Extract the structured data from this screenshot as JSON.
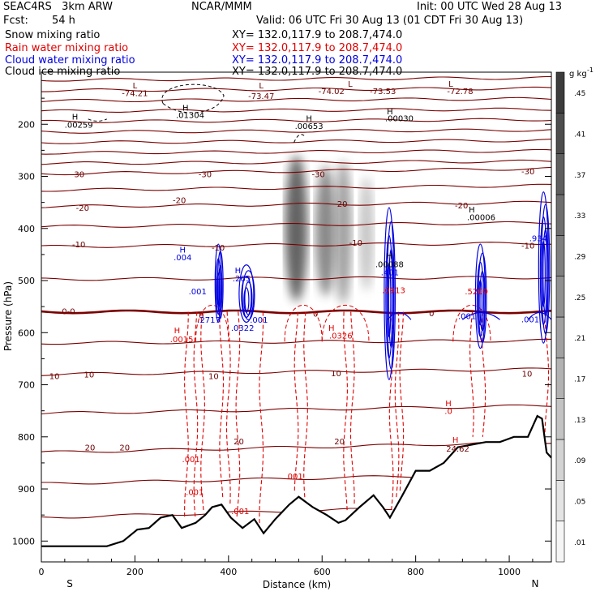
{
  "header": {
    "project": "SEAC4RS   3km ARW",
    "org": "NCAR/MMM",
    "init": "Init: 00 UTC Wed 28 Aug 13",
    "fcst_label": "Fcst:",
    "fcst_value": "54 h",
    "valid": "Valid: 06 UTC Fri 30 Aug 13 (01 CDT Fri 30 Aug 13)"
  },
  "fields": [
    {
      "name": "Snow mixing ratio",
      "xy": "XY= 132.0,117.9 to 208.7,474.0",
      "color": "#000000"
    },
    {
      "name": "Rain water mixing ratio",
      "xy": "XY= 132.0,117.9 to 208.7,474.0",
      "color": "#e00000"
    },
    {
      "name": "Cloud water mixing ratio",
      "xy": "XY= 132.0,117.9 to 208.7,474.0",
      "color": "#0000e0"
    },
    {
      "name": "Cloud ice mixing ratio",
      "xy": "XY= 132.0,117.9 to 208.7,474.0",
      "color": "#000000"
    }
  ],
  "chart_data": {
    "type": "cross-section",
    "xlabel": "Distance (km)",
    "ylabel": "Pressure (hPa)",
    "xlim": [
      0,
      1090
    ],
    "ylim": [
      1040,
      100
    ],
    "x_ticks": [
      0,
      200,
      400,
      600,
      800,
      1000
    ],
    "y_ticks": [
      200,
      300,
      400,
      500,
      600,
      700,
      800,
      900,
      1000
    ],
    "x_endpoint_left": "S",
    "x_endpoint_right": "N",
    "colorbar": {
      "unit": "g kg",
      "unit_exp": "-1",
      "levels": [
        ".01",
        ".05",
        ".09",
        ".13",
        ".17",
        ".21",
        ".25",
        ".29",
        ".33",
        ".37",
        ".41",
        ".45"
      ],
      "range": [
        0,
        0.49
      ]
    },
    "terrain_pressure": [
      [
        0,
        1010
      ],
      [
        40,
        1010
      ],
      [
        90,
        1010
      ],
      [
        140,
        1010
      ],
      [
        175,
        1000
      ],
      [
        205,
        978
      ],
      [
        230,
        975
      ],
      [
        255,
        955
      ],
      [
        280,
        950
      ],
      [
        300,
        975
      ],
      [
        330,
        965
      ],
      [
        350,
        950
      ],
      [
        365,
        935
      ],
      [
        385,
        930
      ],
      [
        405,
        955
      ],
      [
        430,
        975
      ],
      [
        455,
        958
      ],
      [
        475,
        985
      ],
      [
        500,
        958
      ],
      [
        530,
        930
      ],
      [
        550,
        915
      ],
      [
        580,
        935
      ],
      [
        610,
        950
      ],
      [
        635,
        965
      ],
      [
        650,
        960
      ],
      [
        680,
        935
      ],
      [
        710,
        912
      ],
      [
        730,
        935
      ],
      [
        745,
        955
      ],
      [
        770,
        915
      ],
      [
        800,
        865
      ],
      [
        830,
        865
      ],
      [
        860,
        850
      ],
      [
        890,
        820
      ],
      [
        920,
        815
      ],
      [
        950,
        810
      ],
      [
        980,
        810
      ],
      [
        1010,
        800
      ],
      [
        1040,
        800
      ],
      [
        1060,
        760
      ],
      [
        1070,
        765
      ],
      [
        1080,
        830
      ],
      [
        1090,
        840
      ]
    ],
    "isotherms": [
      {
        "label": "-30",
        "p_left": 295,
        "p_right": 285
      },
      {
        "label": "-20",
        "p_left": 358,
        "p_right": 350
      },
      {
        "label": "-10",
        "p_left": 435,
        "p_right": 428
      },
      {
        "label": "0",
        "p_left": 560,
        "p_right": 560
      },
      {
        "label": "10",
        "p_left": 680,
        "p_right": 670
      },
      {
        "label": "20",
        "p_left": 830,
        "p_right": 810
      }
    ],
    "temp_labels": [
      {
        "text": "-30",
        "x": 78,
        "p": 295
      },
      {
        "text": "-30",
        "x": 350,
        "p": 295
      },
      {
        "text": "-30",
        "x": 592,
        "p": 295
      },
      {
        "text": "-30",
        "x": 1040,
        "p": 290
      },
      {
        "text": "-20",
        "x": 88,
        "p": 360
      },
      {
        "text": "-20",
        "x": 295,
        "p": 345
      },
      {
        "text": "-20",
        "x": 640,
        "p": 352
      },
      {
        "text": "-20",
        "x": 898,
        "p": 355
      },
      {
        "text": "-10",
        "x": 80,
        "p": 430
      },
      {
        "text": "-10",
        "x": 378,
        "p": 436
      },
      {
        "text": "-10",
        "x": 672,
        "p": 427
      },
      {
        "text": "-10",
        "x": 1040,
        "p": 432
      },
      {
        "text": "0-0",
        "x": 58,
        "p": 558
      },
      {
        "text": "0",
        "x": 342,
        "p": 566
      },
      {
        "text": "0",
        "x": 586,
        "p": 563
      },
      {
        "text": "0",
        "x": 834,
        "p": 562
      },
      {
        "text": "10",
        "x": 28,
        "p": 683
      },
      {
        "text": "10",
        "x": 102,
        "p": 680
      },
      {
        "text": "10",
        "x": 368,
        "p": 683
      },
      {
        "text": "10",
        "x": 630,
        "p": 677
      },
      {
        "text": "10",
        "x": 1038,
        "p": 678
      },
      {
        "text": "20",
        "x": 104,
        "p": 820
      },
      {
        "text": "20",
        "x": 178,
        "p": 820
      },
      {
        "text": "20",
        "x": 422,
        "p": 808
      },
      {
        "text": "20",
        "x": 637,
        "p": 808
      }
    ],
    "extrema_labels": [
      {
        "text": "L",
        "x": 200,
        "p": 125,
        "color": "#6b0000"
      },
      {
        "text": "-74.21",
        "x": 200,
        "p": 140,
        "color": "#6b0000"
      },
      {
        "text": "L",
        "x": 470,
        "p": 125,
        "color": "#6b0000"
      },
      {
        "text": "-73.47",
        "x": 470,
        "p": 145,
        "color": "#6b0000"
      },
      {
        "text": "L",
        "x": 660,
        "p": 122,
        "color": "#6b0000"
      },
      {
        "text": "-74.02",
        "x": 620,
        "p": 136,
        "color": "#6b0000"
      },
      {
        "text": "-73.53",
        "x": 730,
        "p": 136,
        "color": "#6b0000"
      },
      {
        "text": "L",
        "x": 875,
        "p": 122,
        "color": "#6b0000"
      },
      {
        "text": "-72.78",
        "x": 895,
        "p": 136,
        "color": "#6b0000"
      },
      {
        "text": "H",
        "x": 72,
        "p": 185,
        "color": "#000000"
      },
      {
        "text": ".00259",
        "x": 80,
        "p": 200,
        "color": "#000000"
      },
      {
        "text": "H",
        "x": 308,
        "p": 168,
        "color": "#000000"
      },
      {
        "text": ".01304",
        "x": 318,
        "p": 182,
        "color": "#000000"
      },
      {
        "text": "H",
        "x": 572,
        "p": 188,
        "color": "#000000"
      },
      {
        "text": ".00653",
        "x": 572,
        "p": 203,
        "color": "#000000"
      },
      {
        "text": "H",
        "x": 745,
        "p": 175,
        "color": "#000000"
      },
      {
        "text": ".00030",
        "x": 765,
        "p": 188,
        "color": "#000000"
      },
      {
        "text": "H",
        "x": 920,
        "p": 363,
        "color": "#000000"
      },
      {
        "text": ".00006",
        "x": 940,
        "p": 378,
        "color": "#000000"
      },
      {
        "text": "H",
        "x": 744,
        "p": 452,
        "color": "#000000"
      },
      {
        "text": ".00088",
        "x": 744,
        "p": 468,
        "color": "#000000"
      },
      {
        "text": "H",
        "x": 290,
        "p": 595,
        "color": "#e00000"
      },
      {
        "text": ".0015",
        "x": 300,
        "p": 612,
        "color": "#e00000"
      },
      {
        "text": "H",
        "x": 620,
        "p": 590,
        "color": "#e00000"
      },
      {
        "text": ".0326",
        "x": 640,
        "p": 605,
        "color": "#e00000"
      },
      {
        "text": "H",
        "x": 870,
        "p": 735,
        "color": "#e00000"
      },
      {
        "text": ".0",
        "x": 870,
        "p": 750,
        "color": "#e00000"
      },
      {
        "text": "H",
        "x": 885,
        "p": 805,
        "color": "#e00000"
      },
      {
        "text": "24.62",
        "x": 890,
        "p": 822,
        "color": "#6b0000"
      },
      {
        "text": ".001",
        "x": 320,
        "p": 842,
        "color": "#e00000"
      },
      {
        "text": ".001",
        "x": 328,
        "p": 905,
        "color": "#e00000"
      },
      {
        "text": ".001",
        "x": 425,
        "p": 942,
        "color": "#e00000"
      },
      {
        "text": ".001",
        "x": 540,
        "p": 875,
        "color": "#e00000"
      },
      {
        "text": ".0913",
        "x": 753,
        "p": 518,
        "color": "#e00000"
      },
      {
        "text": ".5209",
        "x": 930,
        "p": 520,
        "color": "#e00000"
      },
      {
        "text": "H",
        "x": 302,
        "p": 440,
        "color": "#0000e0"
      },
      {
        "text": ".004",
        "x": 302,
        "p": 455,
        "color": "#0000e0"
      },
      {
        "text": ".001",
        "x": 334,
        "p": 520,
        "color": "#0000e0"
      },
      {
        "text": "H",
        "x": 420,
        "p": 480,
        "color": "#0000e0"
      },
      {
        "text": ".265",
        "x": 428,
        "p": 495,
        "color": "#0000e0"
      },
      {
        "text": ".2717",
        "x": 358,
        "p": 575,
        "color": "#0000e0"
      },
      {
        "text": ".0322",
        "x": 430,
        "p": 590,
        "color": "#0000e0"
      },
      {
        "text": ".001",
        "x": 465,
        "p": 575,
        "color": "#0000e0"
      },
      {
        "text": ".401",
        "x": 745,
        "p": 484,
        "color": "#0000e0"
      },
      {
        "text": ".001",
        "x": 910,
        "p": 568,
        "color": "#0000e0"
      },
      {
        "text": ".934",
        "x": 1062,
        "p": 418,
        "color": "#0000e0"
      },
      {
        "text": ".001",
        "x": 1045,
        "p": 574,
        "color": "#0000e0"
      }
    ],
    "snow_shading": [
      {
        "x": 545,
        "p_top": 260,
        "p_bot": 540,
        "width": 28,
        "peak": 0.4
      },
      {
        "x": 608,
        "p_top": 280,
        "p_bot": 530,
        "width": 26,
        "peak": 0.3
      },
      {
        "x": 645,
        "p_top": 270,
        "p_bot": 545,
        "width": 22,
        "peak": 0.24
      },
      {
        "x": 695,
        "p_top": 300,
        "p_bot": 520,
        "width": 18,
        "peak": 0.15
      }
    ],
    "cloud_water": [
      {
        "x": 380,
        "p_top": 430,
        "p_bot": 580,
        "width": 8
      },
      {
        "x": 440,
        "p_top": 470,
        "p_bot": 580,
        "width": 18
      },
      {
        "x": 745,
        "p_top": 360,
        "p_bot": 690,
        "width": 12
      },
      {
        "x": 940,
        "p_top": 430,
        "p_bot": 630,
        "width": 12
      },
      {
        "x": 1075,
        "p_top": 330,
        "p_bot": 620,
        "width": 12
      }
    ],
    "rain_columns": [
      310,
      330,
      345,
      385,
      400,
      420,
      470,
      545,
      565,
      650,
      665,
      748,
      760,
      770,
      920,
      945,
      1080
    ]
  }
}
